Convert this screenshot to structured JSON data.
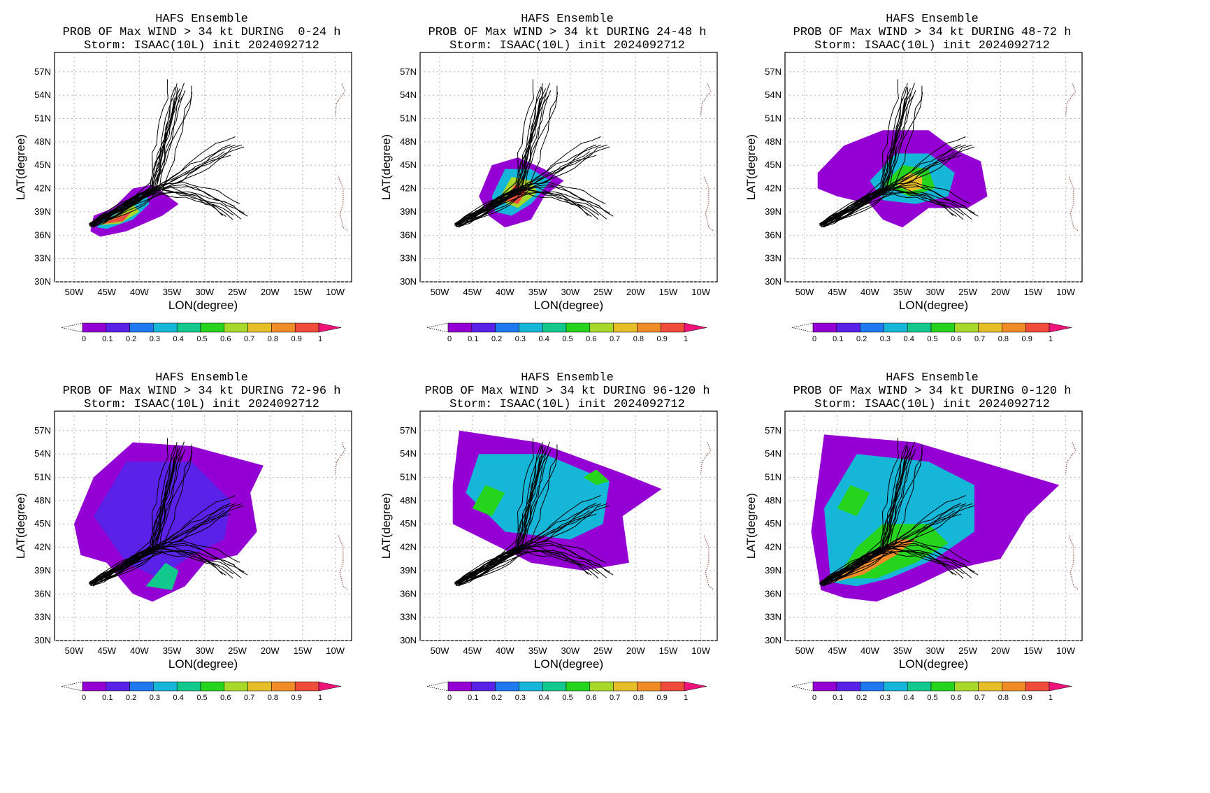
{
  "colorbar": {
    "labels": [
      "0",
      "0.1",
      "0.2",
      "0.3",
      "0.4",
      "0.5",
      "0.6",
      "0.7",
      "0.8",
      "0.9",
      "1"
    ],
    "colors": [
      "#9400d3",
      "#5a22e8",
      "#1e78f0",
      "#16b6d8",
      "#12c88c",
      "#26d41e",
      "#a8d82a",
      "#e6be28",
      "#f08c28",
      "#f04c3c",
      "#f0147a"
    ]
  },
  "axes": {
    "lon_ticks": [
      "50W",
      "45W",
      "40W",
      "35W",
      "30W",
      "25W",
      "20W",
      "15W",
      "10W"
    ],
    "lat_ticks": [
      "30N",
      "33N",
      "36N",
      "39N",
      "42N",
      "45N",
      "48N",
      "51N",
      "54N",
      "57N"
    ],
    "xlabel": "LON(degree)",
    "ylabel": "LAT(degree)"
  },
  "panels": [
    {
      "line1": "HAFS Ensemble",
      "line2": "PROB OF Max WIND > 34 kt DURING  0-24 h",
      "line3": "Storm: ISAAC(10L) init 2024092712",
      "probability_regions": [
        {
          "level": 0.05,
          "lonlat": [
            [
              -47.5,
              36.5
            ],
            [
              -47,
              38.5
            ],
            [
              -44,
              39.5
            ],
            [
              -41,
              42
            ],
            [
              -38,
              42.5
            ],
            [
              -34,
              40
            ],
            [
              -36.5,
              38.5
            ],
            [
              -42,
              36.5
            ],
            [
              -46,
              35.8
            ]
          ]
        },
        {
          "level": 0.35,
          "lonlat": [
            [
              -46.5,
              37
            ],
            [
              -45.5,
              38.5
            ],
            [
              -42,
              40
            ],
            [
              -39,
              41.5
            ],
            [
              -38.5,
              40
            ],
            [
              -41,
              38
            ],
            [
              -45,
              36.8
            ]
          ]
        },
        {
          "level": 0.65,
          "lonlat": [
            [
              -46,
              37.3
            ],
            [
              -44,
              38.5
            ],
            [
              -41,
              40
            ],
            [
              -40,
              39
            ],
            [
              -43,
              37.5
            ]
          ]
        },
        {
          "level": 0.9,
          "lonlat": [
            [
              -46,
              37.4
            ],
            [
              -43,
              38.4
            ],
            [
              -41,
              39.2
            ],
            [
              -42.5,
              37.8
            ]
          ]
        }
      ]
    },
    {
      "line1": "HAFS Ensemble",
      "line2": "PROB OF Max WIND > 34 kt DURING 24-48 h",
      "line3": "Storm: ISAAC(10L) init 2024092712",
      "probability_regions": [
        {
          "level": 0.05,
          "lonlat": [
            [
              -44,
              41
            ],
            [
              -42,
              45
            ],
            [
              -38,
              46
            ],
            [
              -34,
              44.5
            ],
            [
              -31,
              43
            ],
            [
              -34,
              41
            ],
            [
              -36,
              38
            ],
            [
              -40,
              37
            ],
            [
              -42.5,
              38.5
            ]
          ]
        },
        {
          "level": 0.35,
          "lonlat": [
            [
              -42,
              41
            ],
            [
              -40,
              44.5
            ],
            [
              -36,
              44.5
            ],
            [
              -33,
              43
            ],
            [
              -36,
              40
            ],
            [
              -39,
              38.5
            ],
            [
              -41.5,
              39
            ]
          ]
        },
        {
          "level": 0.65,
          "lonlat": [
            [
              -41,
              40.5
            ],
            [
              -39,
              43.5
            ],
            [
              -36,
              43
            ],
            [
              -35,
              41.5
            ],
            [
              -38,
              39.5
            ]
          ]
        },
        {
          "level": 0.9,
          "lonlat": [
            [
              -40,
              40.5
            ],
            [
              -38.5,
              42.5
            ],
            [
              -36.5,
              42
            ],
            [
              -38,
              40
            ]
          ]
        }
      ]
    },
    {
      "line1": "HAFS Ensemble",
      "line2": "PROB OF Max WIND > 34 kt DURING 48-72 h",
      "line3": "Storm: ISAAC(10L) init 2024092712",
      "probability_regions": [
        {
          "level": 0.05,
          "lonlat": [
            [
              -48,
              44
            ],
            [
              -44,
              47.5
            ],
            [
              -38,
              49.5
            ],
            [
              -31,
              49.5
            ],
            [
              -27,
              47
            ],
            [
              -23,
              45.5
            ],
            [
              -22,
              41
            ],
            [
              -25,
              39.5
            ],
            [
              -31,
              39.5
            ],
            [
              -35,
              37
            ],
            [
              -38,
              38
            ],
            [
              -40,
              40
            ],
            [
              -45,
              41
            ],
            [
              -48,
              42
            ]
          ]
        },
        {
          "level": 0.3,
          "lonlat": [
            [
              -40,
              43
            ],
            [
              -36,
              46.5
            ],
            [
              -31,
              46.5
            ],
            [
              -27,
              44
            ],
            [
              -28,
              41
            ],
            [
              -33,
              40
            ],
            [
              -38,
              40.5
            ]
          ]
        },
        {
          "level": 0.5,
          "lonlat": [
            [
              -38,
              42.5
            ],
            [
              -35,
              45
            ],
            [
              -31,
              44.5
            ],
            [
              -30,
              42
            ],
            [
              -34,
              41
            ]
          ]
        },
        {
          "level": 0.75,
          "lonlat": [
            [
              -36,
              42.5
            ],
            [
              -34,
              44
            ],
            [
              -32,
              43.5
            ],
            [
              -32,
              42
            ],
            [
              -34,
              41.6
            ]
          ]
        }
      ]
    },
    {
      "line1": "HAFS Ensemble",
      "line2": "PROB OF Max WIND > 34 kt DURING 72-96 h",
      "line3": "Storm: ISAAC(10L) init 2024092712",
      "probability_regions": [
        {
          "level": 0.05,
          "lonlat": [
            [
              -50,
              45
            ],
            [
              -47,
              51
            ],
            [
              -41,
              55.5
            ],
            [
              -32,
              55
            ],
            [
              -21,
              52.5
            ],
            [
              -23,
              49
            ],
            [
              -22,
              44
            ],
            [
              -25,
              41
            ],
            [
              -30,
              40
            ],
            [
              -33,
              37
            ],
            [
              -38,
              35
            ],
            [
              -41,
              36
            ],
            [
              -45,
              40
            ],
            [
              -49,
              41
            ]
          ]
        },
        {
          "level": 0.15,
          "lonlat": [
            [
              -47,
              46
            ],
            [
              -42,
              53
            ],
            [
              -32,
              53
            ],
            [
              -26,
              48
            ],
            [
              -27,
              43
            ],
            [
              -32,
              41
            ],
            [
              -37,
              38
            ],
            [
              -42,
              40
            ]
          ]
        },
        {
          "level": 0.45,
          "lonlat": [
            [
              -39,
              37
            ],
            [
              -36,
              40
            ],
            [
              -34,
              39
            ],
            [
              -35,
              36.5
            ]
          ]
        }
      ]
    },
    {
      "line1": "HAFS Ensemble",
      "line2": "PROB OF Max WIND > 34 kt DURING 96-120 h",
      "line3": "Storm: ISAAC(10L) init 2024092712",
      "probability_regions": [
        {
          "level": 0.05,
          "lonlat": [
            [
              -48,
              50
            ],
            [
              -47,
              57
            ],
            [
              -35,
              55.5
            ],
            [
              -22,
              51.5
            ],
            [
              -16,
              49.5
            ],
            [
              -22,
              46
            ],
            [
              -21,
              40
            ],
            [
              -28,
              39
            ],
            [
              -36,
              40
            ],
            [
              -42,
              42.5
            ],
            [
              -48,
              45
            ]
          ]
        },
        {
          "level": 0.3,
          "lonlat": [
            [
              -46,
              49
            ],
            [
              -44,
              54
            ],
            [
              -34,
              54
            ],
            [
              -24,
              50.5
            ],
            [
              -25,
              45
            ],
            [
              -30,
              43
            ],
            [
              -40,
              44
            ]
          ]
        },
        {
          "level": 0.55,
          "lonlat": [
            [
              -45,
              47
            ],
            [
              -43,
              50
            ],
            [
              -40,
              49
            ],
            [
              -42,
              46
            ]
          ]
        },
        {
          "level": 0.55,
          "lonlat": [
            [
              -28,
              51
            ],
            [
              -26,
              52
            ],
            [
              -24,
              50.5
            ],
            [
              -26,
              50
            ]
          ]
        }
      ]
    },
    {
      "line1": "HAFS Ensemble",
      "line2": "PROB OF Max WIND > 34 kt DURING 0-120 h",
      "line3": "Storm: ISAAC(10L) init 2024092712",
      "probability_regions": [
        {
          "level": 0.05,
          "lonlat": [
            [
              -47.5,
              36.5
            ],
            [
              -49,
              44
            ],
            [
              -47,
              56.5
            ],
            [
              -33,
              55.5
            ],
            [
              -19,
              52
            ],
            [
              -11,
              50
            ],
            [
              -16,
              46
            ],
            [
              -20,
              40.5
            ],
            [
              -28,
              39
            ],
            [
              -33,
              37
            ],
            [
              -39,
              35
            ],
            [
              -44,
              35.5
            ]
          ]
        },
        {
          "level": 0.3,
          "lonlat": [
            [
              -46,
              37.5
            ],
            [
              -47,
              47
            ],
            [
              -42,
              54
            ],
            [
              -31,
              53
            ],
            [
              -24,
              50
            ],
            [
              -24,
              44
            ],
            [
              -30,
              40.5
            ],
            [
              -37,
              38
            ],
            [
              -42,
              37
            ]
          ]
        },
        {
          "level": 0.55,
          "lonlat": [
            [
              -45,
              38
            ],
            [
              -42,
              42
            ],
            [
              -38,
              45
            ],
            [
              -31,
              45
            ],
            [
              -28,
              42.5
            ],
            [
              -33,
              40
            ],
            [
              -39,
              38
            ]
          ]
        },
        {
          "level": 0.55,
          "lonlat": [
            [
              -45,
              47
            ],
            [
              -43,
              50
            ],
            [
              -40,
              49
            ],
            [
              -42,
              46
            ]
          ]
        },
        {
          "level": 0.85,
          "lonlat": [
            [
              -46,
              37.4
            ],
            [
              -41,
              40.5
            ],
            [
              -36,
              43
            ],
            [
              -33,
              43
            ],
            [
              -36,
              41
            ],
            [
              -41,
              38.5
            ]
          ]
        }
      ]
    }
  ]
}
